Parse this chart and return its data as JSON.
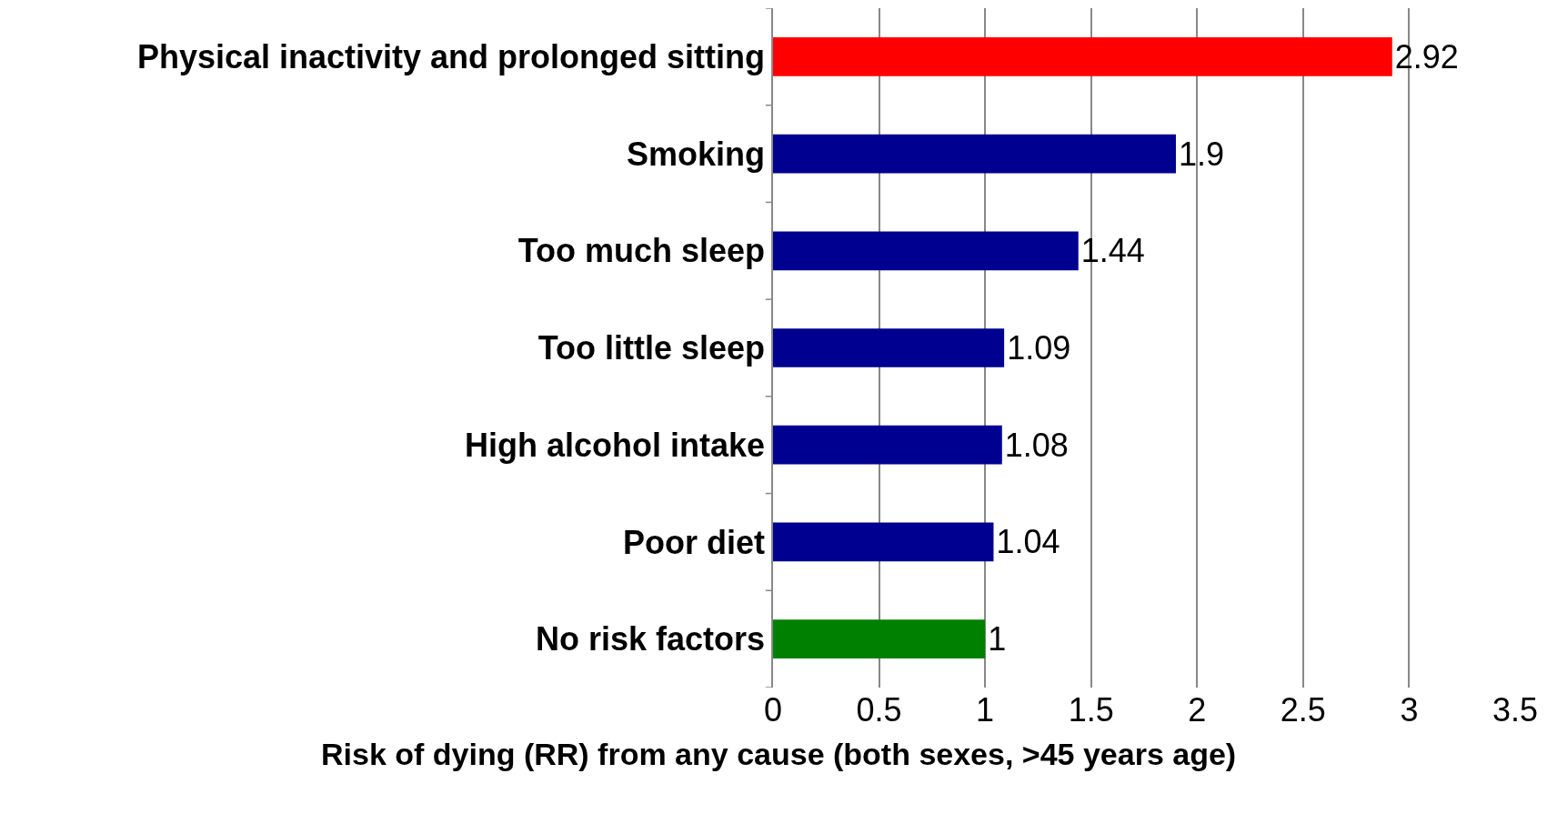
{
  "chart_data": {
    "type": "bar",
    "orientation": "horizontal",
    "xlabel": "Risk of dying (RR) from any cause (both sexes, >45 years age)",
    "categories": [
      "Physical inactivity and prolonged sitting",
      "Smoking",
      "Too much sleep",
      "Too little sleep",
      "High alcohol intake",
      "Poor diet",
      "No risk factors"
    ],
    "values": [
      2.92,
      1.9,
      1.44,
      1.09,
      1.08,
      1.04,
      1
    ],
    "colors": [
      "#ff0000",
      "#000090",
      "#000090",
      "#000090",
      "#000090",
      "#000090",
      "#008000"
    ],
    "xlim": [
      0,
      3.5
    ],
    "xticks": [
      0,
      0.5,
      1,
      1.5,
      2,
      2.5,
      3,
      3.5
    ],
    "grid": "x",
    "data_labels": true,
    "legend": false
  }
}
